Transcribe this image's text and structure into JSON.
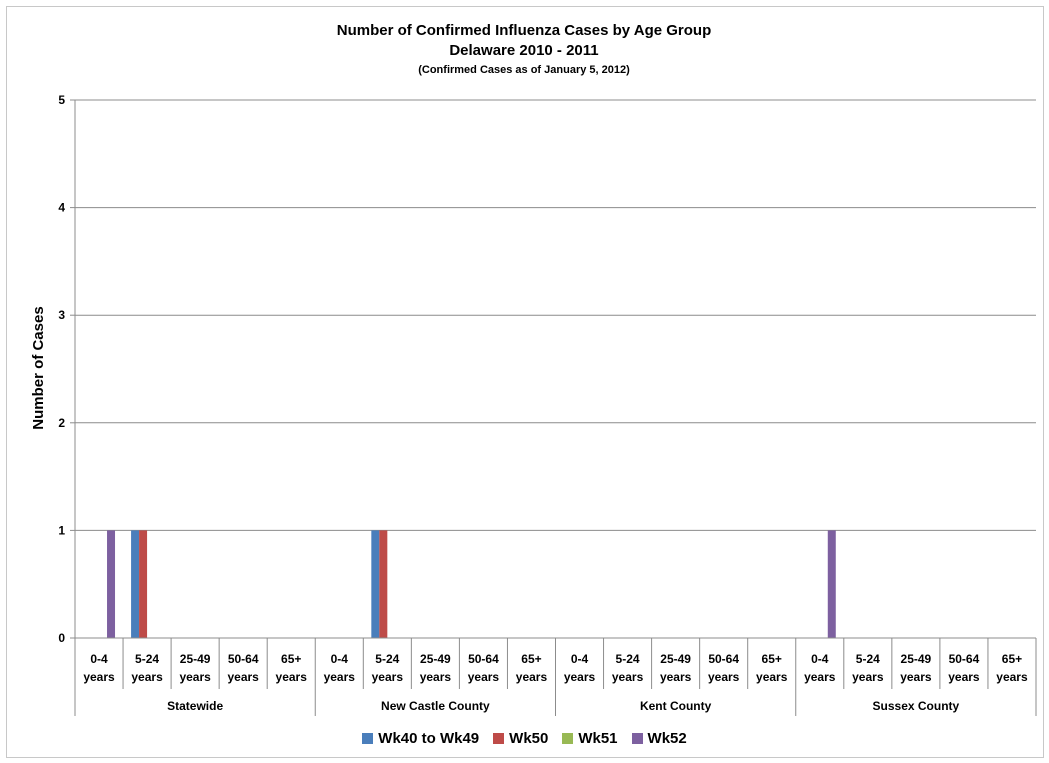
{
  "chart_data": {
    "type": "bar",
    "title": "Number of Confirmed Influenza Cases by Age Group",
    "subtitle": "Delaware 2010 - 2011",
    "note": "(Confirmed Cases as of January 5, 2012)",
    "ylabel": "Number of Cases",
    "xlabel": "",
    "ylim": [
      0,
      5
    ],
    "yticks": [
      0,
      1,
      2,
      3,
      4,
      5
    ],
    "grid": true,
    "legend_position": "bottom",
    "groups": [
      "Statewide",
      "New Castle County",
      "Kent County",
      "Sussex County"
    ],
    "age_groups": [
      [
        "0-4",
        "years"
      ],
      [
        "5-24",
        "years"
      ],
      [
        "25-49",
        "years"
      ],
      [
        "50-64",
        "years"
      ],
      [
        "65+",
        "years"
      ]
    ],
    "series": [
      {
        "name": "Wk40 to Wk49",
        "color": "#4a7ebb",
        "values": [
          [
            0,
            1,
            0,
            0,
            0
          ],
          [
            0,
            1,
            0,
            0,
            0
          ],
          [
            0,
            0,
            0,
            0,
            0
          ],
          [
            0,
            0,
            0,
            0,
            0
          ]
        ]
      },
      {
        "name": "Wk50",
        "color": "#be4b48",
        "values": [
          [
            0,
            1,
            0,
            0,
            0
          ],
          [
            0,
            1,
            0,
            0,
            0
          ],
          [
            0,
            0,
            0,
            0,
            0
          ],
          [
            0,
            0,
            0,
            0,
            0
          ]
        ]
      },
      {
        "name": "Wk51",
        "color": "#98b954",
        "values": [
          [
            0,
            0,
            0,
            0,
            0
          ],
          [
            0,
            0,
            0,
            0,
            0
          ],
          [
            0,
            0,
            0,
            0,
            0
          ],
          [
            0,
            0,
            0,
            0,
            0
          ]
        ]
      },
      {
        "name": "Wk52",
        "color": "#7d60a0",
        "values": [
          [
            1,
            0,
            0,
            0,
            0
          ],
          [
            0,
            0,
            0,
            0,
            0
          ],
          [
            0,
            0,
            0,
            0,
            0
          ],
          [
            1,
            0,
            0,
            0,
            0
          ]
        ]
      }
    ]
  }
}
